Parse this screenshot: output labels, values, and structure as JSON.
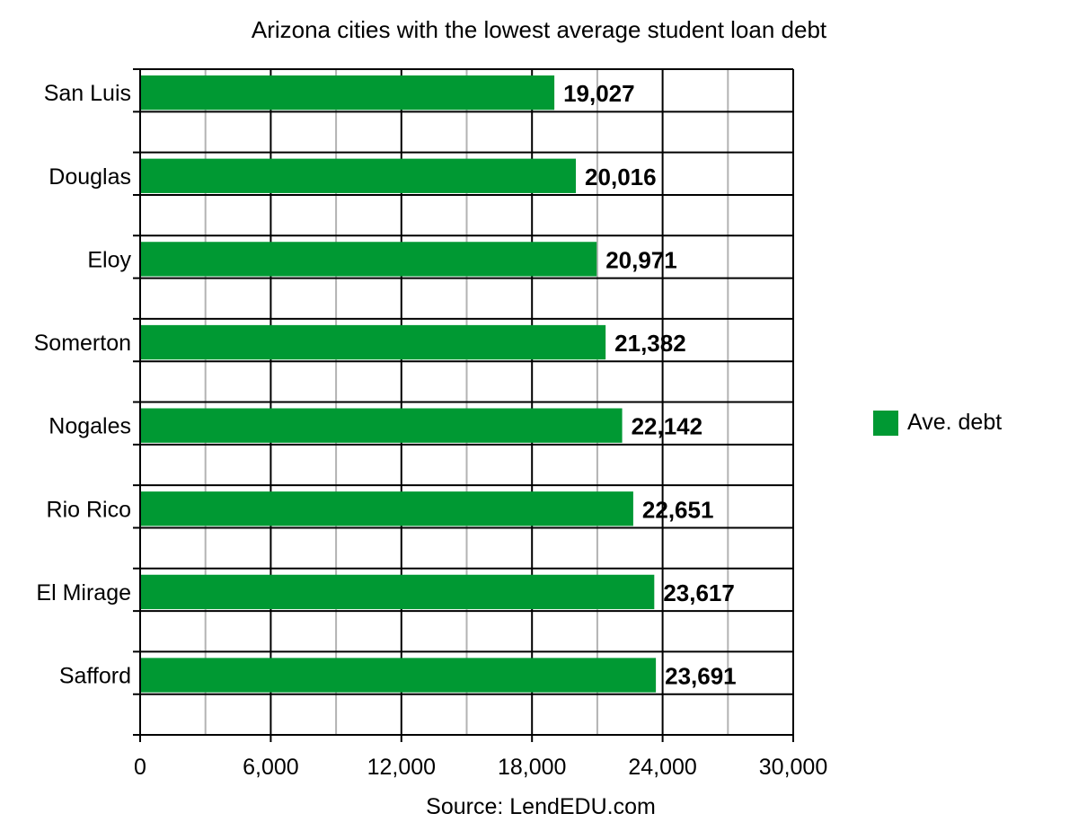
{
  "chart_data": {
    "type": "bar",
    "orientation": "horizontal",
    "title": "Arizona cities with the lowest average student loan debt",
    "categories": [
      "San Luis",
      "Douglas",
      "Eloy",
      "Somerton",
      "Nogales",
      "Rio Rico",
      "El Mirage",
      "Safford"
    ],
    "series": [
      {
        "name": "Ave. debt",
        "color": "#009933",
        "values": [
          19027,
          20016,
          20971,
          21382,
          22142,
          22651,
          23617,
          23691
        ],
        "labels": [
          "19,027",
          "20,016",
          "20,971",
          "21,382",
          "22,142",
          "22,651",
          "23,617",
          "23,691"
        ]
      }
    ],
    "xlim": [
      0,
      30000
    ],
    "x_ticks": [
      0,
      6000,
      12000,
      18000,
      24000,
      30000
    ],
    "x_tick_labels": [
      "0",
      "6,000",
      "12,000",
      "18,000",
      "24,000",
      "30,000"
    ],
    "minor_gridlines": [
      3000,
      9000,
      15000,
      21000,
      27000
    ],
    "grid": true,
    "legend_position": "right",
    "source": "Source: LendEDU.com"
  }
}
